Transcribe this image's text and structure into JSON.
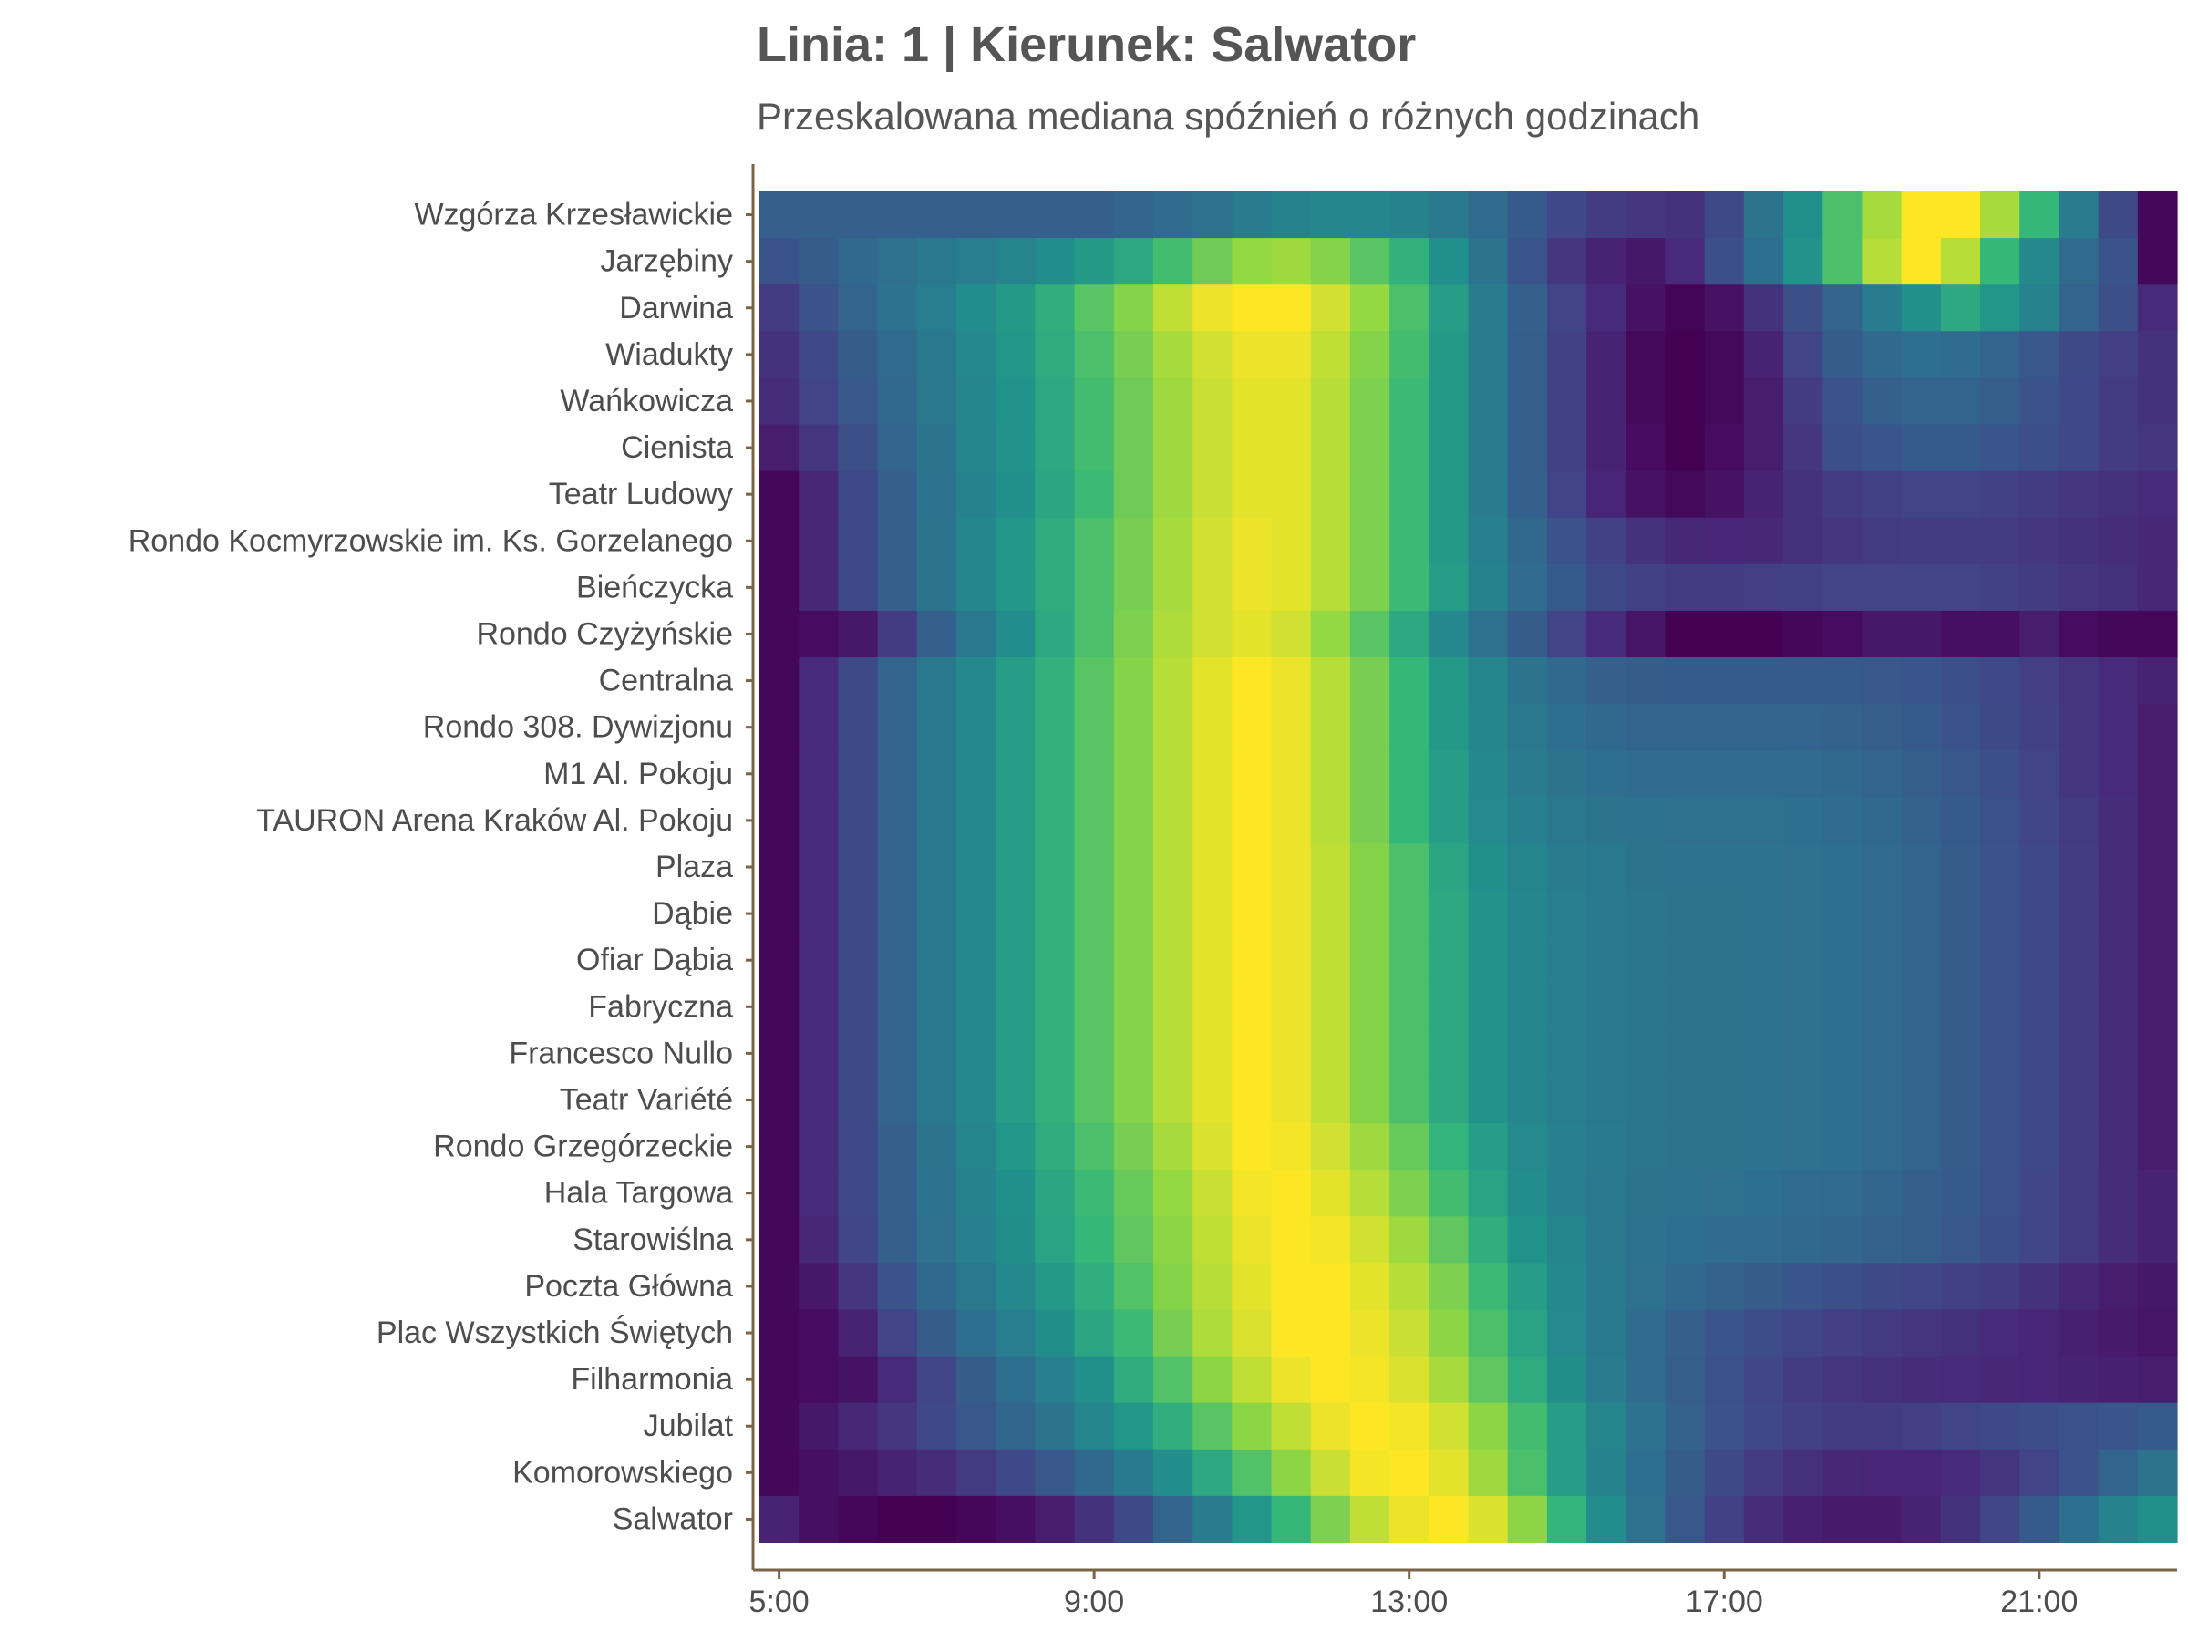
{
  "chart_data": {
    "type": "heatmap",
    "title": "Linia: 1 | Kierunek: Salwator",
    "subtitle": "Przeskalowana mediana spóźnień o różnych godzinach",
    "colormap": "viridis",
    "value_range": [
      0,
      1
    ],
    "x_start_hour": 5,
    "x_step_hours": 0.5,
    "x_ticks": [
      "5:00",
      "9:00",
      "13:00",
      "17:00",
      "21:00"
    ],
    "y_categories": [
      "Wzgórza Krzesławickie",
      "Jarzębiny",
      "Darwina",
      "Wiadukty",
      "Wańkowicza",
      "Cienista",
      "Teatr Ludowy",
      "Rondo Kocmyrzowskie im. Ks. Gorzelanego",
      "Bieńczycka",
      "Rondo Czyżyńskie",
      "Centralna",
      "Rondo 308. Dywizjonu",
      "M1 Al. Pokoju",
      "TAURON Arena Kraków Al. Pokoju",
      "Plaza",
      "Dąbie",
      "Ofiar Dąbia",
      "Fabryczna",
      "Francesco Nullo",
      "Teatr Variété",
      "Rondo Grzegórzeckie",
      "Hala Targowa",
      "Starowiślna",
      "Poczta Główna",
      "Plac Wszystkich Świętych",
      "Filharmonia",
      "Jubilat",
      "Komorowskiego",
      "Salwator"
    ],
    "values": [
      [
        0.38,
        0.38,
        0.38,
        0.38,
        0.38,
        0.38,
        0.38,
        0.38,
        0.38,
        0.4,
        0.43,
        0.46,
        0.52,
        0.55,
        0.57,
        0.57,
        0.55,
        0.5,
        0.43,
        0.35,
        0.27,
        0.22,
        0.2,
        0.18,
        0.28,
        0.48,
        0.62,
        0.78,
        0.9,
        1.0,
        1.0,
        0.9,
        0.75,
        0.52,
        0.28,
        0.02
      ],
      [
        0.32,
        0.36,
        0.42,
        0.46,
        0.5,
        0.53,
        0.56,
        0.6,
        0.65,
        0.7,
        0.77,
        0.83,
        0.88,
        0.89,
        0.86,
        0.8,
        0.73,
        0.62,
        0.48,
        0.33,
        0.2,
        0.12,
        0.08,
        0.15,
        0.3,
        0.45,
        0.63,
        0.78,
        0.92,
        1.0,
        0.92,
        0.75,
        0.58,
        0.43,
        0.32,
        0.02
      ],
      [
        0.22,
        0.32,
        0.4,
        0.47,
        0.53,
        0.6,
        0.65,
        0.72,
        0.8,
        0.86,
        0.93,
        0.98,
        1.0,
        1.0,
        0.95,
        0.88,
        0.78,
        0.66,
        0.52,
        0.38,
        0.25,
        0.15,
        0.06,
        0.01,
        0.06,
        0.18,
        0.3,
        0.4,
        0.52,
        0.62,
        0.7,
        0.64,
        0.55,
        0.4,
        0.3,
        0.15
      ],
      [
        0.18,
        0.27,
        0.36,
        0.43,
        0.5,
        0.58,
        0.64,
        0.71,
        0.78,
        0.84,
        0.9,
        0.95,
        0.98,
        0.98,
        0.93,
        0.86,
        0.77,
        0.65,
        0.52,
        0.37,
        0.24,
        0.12,
        0.03,
        0.0,
        0.03,
        0.12,
        0.25,
        0.36,
        0.42,
        0.45,
        0.44,
        0.4,
        0.34,
        0.28,
        0.23,
        0.18
      ],
      [
        0.16,
        0.25,
        0.34,
        0.42,
        0.5,
        0.57,
        0.63,
        0.7,
        0.77,
        0.83,
        0.89,
        0.94,
        0.97,
        0.97,
        0.92,
        0.85,
        0.76,
        0.65,
        0.52,
        0.37,
        0.24,
        0.12,
        0.03,
        0.0,
        0.03,
        0.1,
        0.22,
        0.32,
        0.38,
        0.4,
        0.4,
        0.37,
        0.32,
        0.27,
        0.22,
        0.18
      ],
      [
        0.1,
        0.2,
        0.3,
        0.4,
        0.48,
        0.56,
        0.63,
        0.7,
        0.77,
        0.83,
        0.89,
        0.94,
        0.97,
        0.97,
        0.92,
        0.85,
        0.76,
        0.65,
        0.52,
        0.37,
        0.24,
        0.12,
        0.04,
        0.0,
        0.04,
        0.1,
        0.2,
        0.3,
        0.33,
        0.35,
        0.35,
        0.33,
        0.3,
        0.27,
        0.22,
        0.2
      ],
      [
        0.02,
        0.14,
        0.27,
        0.38,
        0.47,
        0.55,
        0.62,
        0.69,
        0.76,
        0.83,
        0.89,
        0.94,
        0.97,
        0.97,
        0.92,
        0.85,
        0.76,
        0.65,
        0.52,
        0.38,
        0.25,
        0.13,
        0.06,
        0.03,
        0.06,
        0.12,
        0.18,
        0.22,
        0.24,
        0.25,
        0.25,
        0.24,
        0.22,
        0.2,
        0.17,
        0.15
      ],
      [
        0.02,
        0.14,
        0.27,
        0.38,
        0.48,
        0.57,
        0.64,
        0.71,
        0.78,
        0.84,
        0.9,
        0.95,
        0.98,
        0.97,
        0.92,
        0.85,
        0.76,
        0.65,
        0.54,
        0.42,
        0.32,
        0.24,
        0.18,
        0.14,
        0.13,
        0.14,
        0.17,
        0.2,
        0.21,
        0.22,
        0.22,
        0.22,
        0.2,
        0.18,
        0.16,
        0.14
      ],
      [
        0.02,
        0.14,
        0.27,
        0.38,
        0.48,
        0.57,
        0.64,
        0.71,
        0.78,
        0.84,
        0.9,
        0.95,
        0.98,
        0.97,
        0.92,
        0.85,
        0.76,
        0.66,
        0.55,
        0.44,
        0.35,
        0.28,
        0.24,
        0.22,
        0.22,
        0.23,
        0.24,
        0.25,
        0.25,
        0.25,
        0.25,
        0.24,
        0.22,
        0.2,
        0.17,
        0.14
      ],
      [
        0.02,
        0.04,
        0.08,
        0.22,
        0.38,
        0.5,
        0.6,
        0.7,
        0.78,
        0.85,
        0.91,
        0.95,
        0.97,
        0.95,
        0.88,
        0.8,
        0.7,
        0.58,
        0.46,
        0.36,
        0.25,
        0.15,
        0.07,
        0.0,
        0.0,
        0.0,
        0.02,
        0.04,
        0.08,
        0.08,
        0.05,
        0.05,
        0.1,
        0.04,
        0.02,
        0.02
      ],
      [
        0.02,
        0.15,
        0.28,
        0.4,
        0.5,
        0.58,
        0.66,
        0.73,
        0.8,
        0.86,
        0.92,
        0.97,
        1.0,
        0.98,
        0.92,
        0.84,
        0.75,
        0.65,
        0.56,
        0.48,
        0.42,
        0.38,
        0.36,
        0.35,
        0.35,
        0.35,
        0.35,
        0.35,
        0.34,
        0.33,
        0.3,
        0.27,
        0.23,
        0.19,
        0.15,
        0.12
      ],
      [
        0.02,
        0.15,
        0.28,
        0.4,
        0.5,
        0.58,
        0.66,
        0.73,
        0.8,
        0.86,
        0.92,
        0.97,
        1.0,
        0.98,
        0.92,
        0.84,
        0.75,
        0.65,
        0.57,
        0.5,
        0.45,
        0.42,
        0.4,
        0.4,
        0.4,
        0.4,
        0.4,
        0.39,
        0.37,
        0.35,
        0.32,
        0.28,
        0.24,
        0.19,
        0.15,
        0.1
      ],
      [
        0.02,
        0.15,
        0.28,
        0.4,
        0.5,
        0.58,
        0.66,
        0.73,
        0.8,
        0.86,
        0.92,
        0.97,
        1.0,
        0.98,
        0.92,
        0.84,
        0.75,
        0.66,
        0.58,
        0.52,
        0.48,
        0.45,
        0.44,
        0.44,
        0.44,
        0.44,
        0.43,
        0.42,
        0.4,
        0.37,
        0.34,
        0.3,
        0.25,
        0.2,
        0.15,
        0.1
      ],
      [
        0.02,
        0.15,
        0.28,
        0.4,
        0.5,
        0.58,
        0.66,
        0.73,
        0.8,
        0.86,
        0.92,
        0.97,
        1.0,
        0.98,
        0.92,
        0.84,
        0.75,
        0.66,
        0.59,
        0.54,
        0.5,
        0.48,
        0.47,
        0.46,
        0.46,
        0.46,
        0.45,
        0.44,
        0.42,
        0.39,
        0.35,
        0.31,
        0.26,
        0.21,
        0.16,
        0.1
      ],
      [
        0.02,
        0.15,
        0.28,
        0.4,
        0.5,
        0.58,
        0.66,
        0.73,
        0.8,
        0.86,
        0.92,
        0.97,
        1.0,
        0.98,
        0.93,
        0.86,
        0.78,
        0.69,
        0.62,
        0.56,
        0.52,
        0.5,
        0.48,
        0.47,
        0.47,
        0.47,
        0.46,
        0.45,
        0.43,
        0.4,
        0.36,
        0.32,
        0.27,
        0.22,
        0.16,
        0.1
      ],
      [
        0.02,
        0.15,
        0.28,
        0.4,
        0.5,
        0.58,
        0.66,
        0.73,
        0.8,
        0.86,
        0.92,
        0.97,
        1.0,
        0.98,
        0.93,
        0.86,
        0.78,
        0.7,
        0.63,
        0.57,
        0.53,
        0.5,
        0.49,
        0.48,
        0.48,
        0.47,
        0.46,
        0.45,
        0.43,
        0.4,
        0.36,
        0.32,
        0.27,
        0.22,
        0.16,
        0.1
      ],
      [
        0.02,
        0.15,
        0.28,
        0.4,
        0.5,
        0.58,
        0.66,
        0.73,
        0.8,
        0.86,
        0.92,
        0.97,
        1.0,
        0.98,
        0.93,
        0.86,
        0.78,
        0.7,
        0.63,
        0.57,
        0.53,
        0.5,
        0.49,
        0.48,
        0.48,
        0.47,
        0.46,
        0.45,
        0.43,
        0.4,
        0.36,
        0.32,
        0.27,
        0.22,
        0.16,
        0.1
      ],
      [
        0.02,
        0.15,
        0.28,
        0.4,
        0.5,
        0.58,
        0.66,
        0.73,
        0.8,
        0.86,
        0.92,
        0.97,
        1.0,
        0.98,
        0.93,
        0.86,
        0.78,
        0.7,
        0.63,
        0.57,
        0.53,
        0.5,
        0.49,
        0.48,
        0.48,
        0.47,
        0.46,
        0.45,
        0.43,
        0.4,
        0.36,
        0.32,
        0.27,
        0.22,
        0.16,
        0.1
      ],
      [
        0.02,
        0.15,
        0.28,
        0.4,
        0.5,
        0.58,
        0.66,
        0.73,
        0.8,
        0.86,
        0.92,
        0.97,
        1.0,
        0.98,
        0.93,
        0.86,
        0.78,
        0.7,
        0.63,
        0.57,
        0.53,
        0.5,
        0.49,
        0.48,
        0.48,
        0.47,
        0.46,
        0.45,
        0.43,
        0.4,
        0.36,
        0.32,
        0.27,
        0.22,
        0.16,
        0.1
      ],
      [
        0.02,
        0.15,
        0.28,
        0.4,
        0.5,
        0.58,
        0.66,
        0.73,
        0.8,
        0.86,
        0.92,
        0.97,
        1.0,
        0.98,
        0.93,
        0.86,
        0.78,
        0.7,
        0.63,
        0.57,
        0.53,
        0.5,
        0.49,
        0.48,
        0.48,
        0.47,
        0.46,
        0.45,
        0.43,
        0.4,
        0.36,
        0.32,
        0.27,
        0.22,
        0.16,
        0.1
      ],
      [
        0.02,
        0.15,
        0.27,
        0.38,
        0.48,
        0.56,
        0.64,
        0.71,
        0.78,
        0.84,
        0.9,
        0.96,
        1.0,
        0.99,
        0.95,
        0.89,
        0.82,
        0.74,
        0.66,
        0.59,
        0.54,
        0.51,
        0.49,
        0.48,
        0.48,
        0.47,
        0.46,
        0.45,
        0.43,
        0.4,
        0.36,
        0.32,
        0.27,
        0.22,
        0.16,
        0.1
      ],
      [
        0.02,
        0.15,
        0.27,
        0.38,
        0.47,
        0.55,
        0.62,
        0.69,
        0.76,
        0.82,
        0.88,
        0.94,
        0.99,
        1.0,
        0.97,
        0.92,
        0.85,
        0.77,
        0.68,
        0.6,
        0.54,
        0.5,
        0.48,
        0.47,
        0.46,
        0.45,
        0.44,
        0.43,
        0.41,
        0.38,
        0.35,
        0.31,
        0.26,
        0.21,
        0.16,
        0.12
      ],
      [
        0.02,
        0.14,
        0.26,
        0.37,
        0.46,
        0.54,
        0.61,
        0.68,
        0.75,
        0.81,
        0.87,
        0.93,
        0.98,
        1.0,
        0.99,
        0.95,
        0.89,
        0.81,
        0.72,
        0.63,
        0.56,
        0.5,
        0.47,
        0.45,
        0.44,
        0.43,
        0.42,
        0.41,
        0.39,
        0.37,
        0.34,
        0.3,
        0.26,
        0.21,
        0.16,
        0.12
      ],
      [
        0.02,
        0.08,
        0.2,
        0.32,
        0.42,
        0.5,
        0.58,
        0.65,
        0.72,
        0.79,
        0.86,
        0.92,
        0.97,
        1.0,
        1.0,
        0.97,
        0.92,
        0.85,
        0.76,
        0.66,
        0.58,
        0.51,
        0.46,
        0.42,
        0.39,
        0.36,
        0.33,
        0.3,
        0.28,
        0.26,
        0.24,
        0.22,
        0.18,
        0.14,
        0.1,
        0.08
      ],
      [
        0.02,
        0.04,
        0.12,
        0.25,
        0.36,
        0.45,
        0.53,
        0.61,
        0.69,
        0.76,
        0.84,
        0.91,
        0.96,
        1.0,
        1.0,
        0.98,
        0.94,
        0.87,
        0.78,
        0.68,
        0.59,
        0.51,
        0.44,
        0.38,
        0.33,
        0.29,
        0.26,
        0.23,
        0.21,
        0.19,
        0.17,
        0.15,
        0.13,
        0.11,
        0.09,
        0.07
      ],
      [
        0.02,
        0.04,
        0.06,
        0.15,
        0.26,
        0.36,
        0.45,
        0.54,
        0.62,
        0.71,
        0.79,
        0.87,
        0.93,
        0.98,
        1.0,
        0.99,
        0.96,
        0.9,
        0.81,
        0.71,
        0.61,
        0.52,
        0.44,
        0.37,
        0.31,
        0.26,
        0.22,
        0.19,
        0.17,
        0.16,
        0.15,
        0.14,
        0.13,
        0.12,
        0.11,
        0.1
      ],
      [
        0.02,
        0.08,
        0.14,
        0.2,
        0.27,
        0.34,
        0.41,
        0.48,
        0.56,
        0.64,
        0.72,
        0.8,
        0.87,
        0.93,
        0.98,
        1.0,
        0.99,
        0.95,
        0.87,
        0.77,
        0.66,
        0.56,
        0.47,
        0.39,
        0.32,
        0.27,
        0.24,
        0.22,
        0.22,
        0.23,
        0.25,
        0.27,
        0.29,
        0.31,
        0.33,
        0.35
      ],
      [
        0.02,
        0.05,
        0.08,
        0.12,
        0.16,
        0.21,
        0.27,
        0.34,
        0.42,
        0.51,
        0.6,
        0.7,
        0.79,
        0.87,
        0.94,
        0.99,
        1.0,
        0.97,
        0.89,
        0.78,
        0.66,
        0.55,
        0.45,
        0.36,
        0.28,
        0.22,
        0.17,
        0.14,
        0.13,
        0.13,
        0.15,
        0.19,
        0.25,
        0.32,
        0.4,
        0.48
      ],
      [
        0.12,
        0.05,
        0.02,
        0.0,
        0.0,
        0.02,
        0.05,
        0.1,
        0.18,
        0.28,
        0.4,
        0.52,
        0.64,
        0.75,
        0.85,
        0.93,
        0.98,
        1.0,
        0.96,
        0.87,
        0.74,
        0.6,
        0.46,
        0.34,
        0.24,
        0.16,
        0.11,
        0.09,
        0.09,
        0.12,
        0.18,
        0.26,
        0.35,
        0.45,
        0.55,
        0.62
      ]
    ]
  }
}
